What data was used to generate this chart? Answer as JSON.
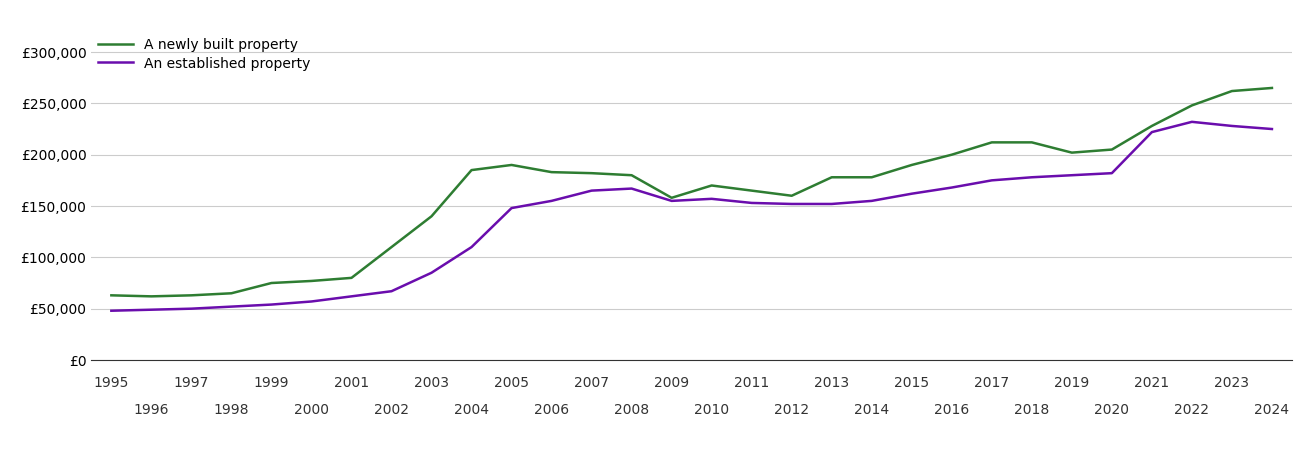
{
  "newly_built": {
    "years": [
      1995,
      1996,
      1997,
      1998,
      1999,
      2000,
      2001,
      2002,
      2003,
      2004,
      2005,
      2006,
      2007,
      2008,
      2009,
      2010,
      2011,
      2012,
      2013,
      2014,
      2015,
      2016,
      2017,
      2018,
      2019,
      2020,
      2021,
      2022,
      2023,
      2024
    ],
    "values": [
      63000,
      62000,
      63000,
      65000,
      75000,
      77000,
      80000,
      110000,
      140000,
      185000,
      190000,
      183000,
      182000,
      180000,
      158000,
      170000,
      165000,
      160000,
      178000,
      178000,
      190000,
      200000,
      212000,
      212000,
      202000,
      205000,
      228000,
      248000,
      262000,
      265000
    ]
  },
  "established": {
    "years": [
      1995,
      1996,
      1997,
      1998,
      1999,
      2000,
      2001,
      2002,
      2003,
      2004,
      2005,
      2006,
      2007,
      2008,
      2009,
      2010,
      2011,
      2012,
      2013,
      2014,
      2015,
      2016,
      2017,
      2018,
      2019,
      2020,
      2021,
      2022,
      2023,
      2024
    ],
    "values": [
      48000,
      49000,
      50000,
      52000,
      54000,
      57000,
      62000,
      67000,
      85000,
      110000,
      148000,
      155000,
      165000,
      167000,
      155000,
      157000,
      153000,
      152000,
      152000,
      155000,
      162000,
      168000,
      175000,
      178000,
      180000,
      182000,
      222000,
      232000,
      228000,
      225000
    ]
  },
  "newly_built_color": "#2e7d32",
  "established_color": "#6a0dad",
  "legend_new": "A newly built property",
  "legend_est": "An established property",
  "ylim": [
    0,
    320000
  ],
  "yticks": [
    0,
    50000,
    100000,
    150000,
    200000,
    250000,
    300000
  ],
  "background_color": "#ffffff",
  "grid_color": "#cccccc",
  "linewidth": 1.8,
  "tick_fontsize": 10,
  "legend_fontsize": 10
}
